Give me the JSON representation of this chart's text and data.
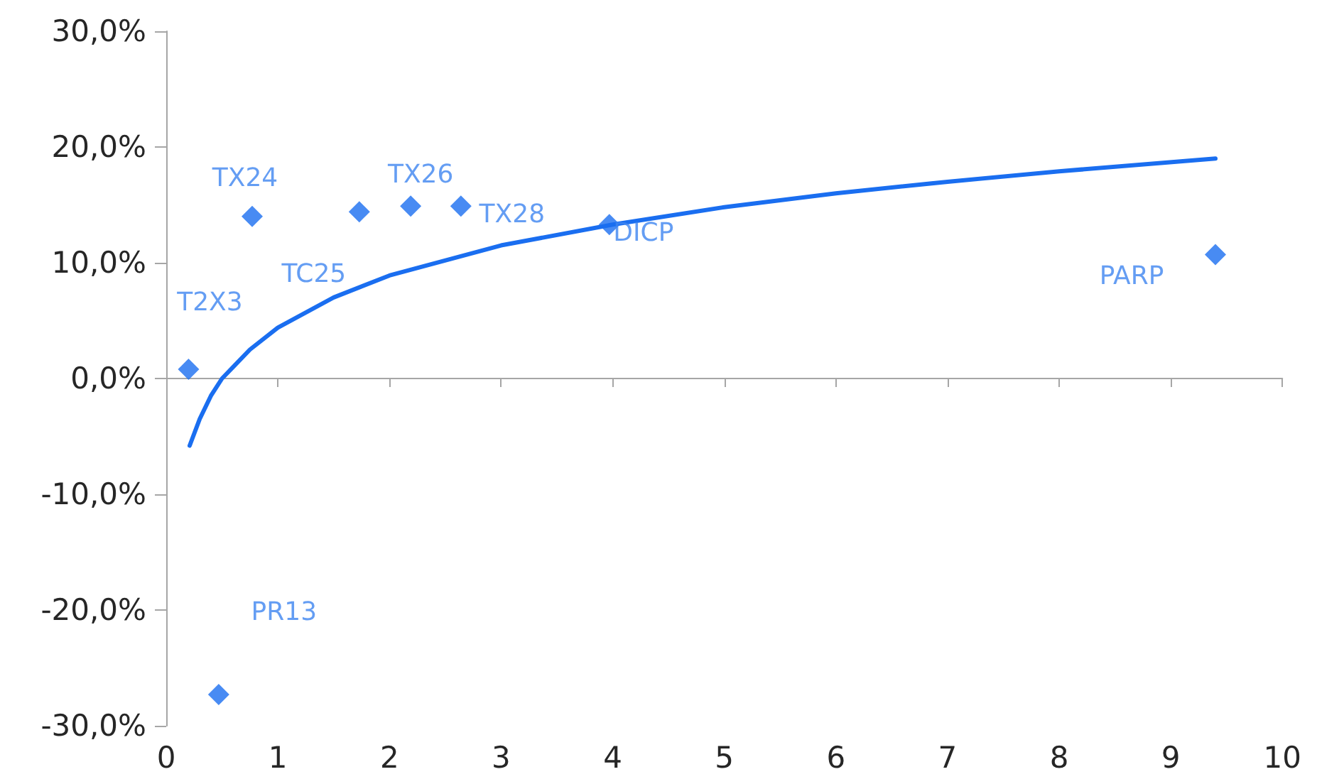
{
  "chart_data": {
    "type": "scatter",
    "series": [
      {
        "color": "#1a6ef0",
        "x": [
          0.2,
          0.47,
          0.77,
          1.73,
          2.19,
          2.64,
          3.97,
          9.4
        ],
        "values": [
          0.8,
          -27.3,
          14.0,
          14.4,
          14.9,
          14.9,
          13.3,
          10.7
        ]
      },
      {
        "type": "line",
        "color": "#1a6ef0",
        "marker": "none",
        "line_style": "solid",
        "x": [
          0.21,
          0.3,
          0.4,
          0.5,
          0.75,
          1,
          1.5,
          2,
          3,
          4,
          5,
          6,
          7,
          8,
          9.4
        ],
        "values": [
          -5.8,
          -3.5,
          -1.5,
          0,
          2.5,
          4.4,
          7.0,
          8.9,
          11.5,
          13.3,
          14.8,
          16.0,
          17.0,
          17.9,
          19.0
        ]
      }
    ],
    "annotations": [
      {
        "text": "T2X3",
        "x": 0.2,
        "y": 0.8
      },
      {
        "text": "PR13",
        "x": 0.47,
        "y": -27.3
      },
      {
        "text": "TX24",
        "x": 0.77,
        "y": 14.0
      },
      {
        "text": "TC25",
        "x": 1.73,
        "y": 14.4
      },
      {
        "text": "TX26",
        "x": 2.19,
        "y": 14.9
      },
      {
        "text": "TX28",
        "x": 2.64,
        "y": 14.9
      },
      {
        "text": "DICP",
        "x": 3.97,
        "y": 13.3
      },
      {
        "text": "PARP",
        "x": 9.4,
        "y": 10.7
      }
    ],
    "xlim": [
      0,
      10
    ],
    "xticks": [
      0,
      1,
      2,
      3,
      4,
      5,
      6,
      7,
      8,
      9,
      10
    ],
    "ylim": [
      -30,
      30
    ],
    "yticks": [
      {
        "value": -30,
        "label": "-30,0%"
      },
      {
        "value": -20,
        "label": "-20,0%"
      },
      {
        "value": -10,
        "label": "-10,0%"
      },
      {
        "value": 0,
        "label": "0,0%"
      },
      {
        "value": 10,
        "label": "10,0%"
      },
      {
        "value": 20,
        "label": "20,0%"
      },
      {
        "value": 30,
        "label": "30,0%"
      }
    ],
    "marker": "diamond"
  }
}
